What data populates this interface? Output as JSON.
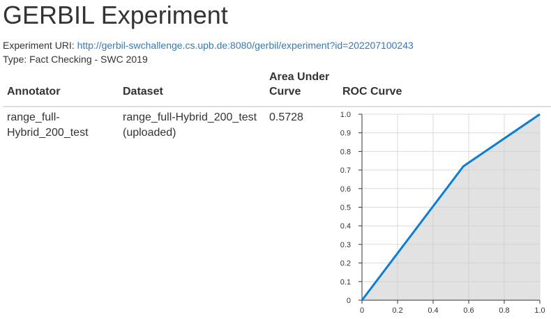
{
  "page": {
    "title": "GERBIL Experiment",
    "uri_label": "Experiment URI: ",
    "uri_link": "http://gerbil-swchallenge.cs.upb.de:8080/gerbil/experiment?id=202207100243",
    "type_text": "Type: Fact Checking - SWC 2019"
  },
  "table": {
    "headers": {
      "annotator": "Annotator",
      "dataset": "Dataset",
      "auc_line1": "Area Under",
      "auc_line2": "Curve",
      "roc": "ROC Curve"
    },
    "rows": [
      {
        "annotator_line1": "range_full-",
        "annotator_line2": "Hybrid_200_test",
        "dataset_line1": "range_full-Hybrid_200_test",
        "dataset_line2": "(uploaded)",
        "auc": "0.5728"
      }
    ]
  },
  "chart_data": {
    "type": "area",
    "x": [
      0,
      0.57,
      1.0
    ],
    "y": [
      0,
      0.72,
      1.0
    ],
    "xlim": [
      0,
      1
    ],
    "ylim": [
      0,
      1
    ],
    "xticks": [
      "0",
      "0.2",
      "0.4",
      "0.6",
      "0.8",
      "1.0"
    ],
    "yticks": [
      "0",
      "0.1",
      "0.2",
      "0.3",
      "0.4",
      "0.5",
      "0.6",
      "0.7",
      "0.8",
      "0.9",
      "1.0"
    ],
    "grid": true,
    "line_color": "#0a7ed6",
    "fill_color": "#e2e2e2"
  }
}
